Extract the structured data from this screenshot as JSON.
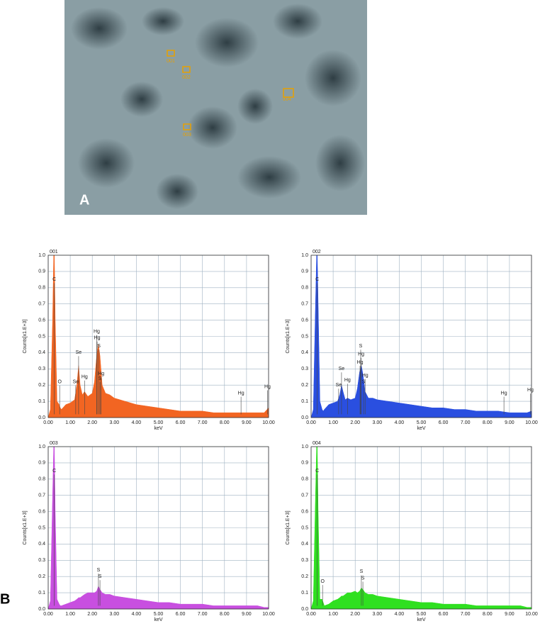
{
  "image": {
    "label": "A",
    "markers": [
      "001",
      "002",
      "003",
      "004"
    ]
  },
  "panel_label": "B",
  "chart_data": [
    {
      "type": "area",
      "title": "001",
      "x_label": "keV",
      "y_label": "Counts[x1.E+3]",
      "color": "#f26522",
      "grid": true,
      "xlim": [
        0,
        10
      ],
      "ylim": [
        0,
        1
      ],
      "xticks": [
        {
          "value": 0,
          "label": "0.00"
        },
        {
          "value": 1,
          "label": "1.00"
        },
        {
          "value": 2,
          "label": "2.00"
        },
        {
          "value": 3,
          "label": "3.00"
        },
        {
          "value": 4,
          "label": "4.00"
        },
        {
          "value": 5,
          "label": "5.00"
        },
        {
          "value": 6,
          "label": "6.00"
        },
        {
          "value": 7,
          "label": "7.00"
        },
        {
          "value": 8,
          "label": "8.00"
        },
        {
          "value": 9,
          "label": "9.00"
        },
        {
          "value": 10,
          "label": "10.00"
        }
      ],
      "yticks": [
        {
          "value": 0,
          "label": "0.0"
        },
        0.1,
        0.2,
        0.3,
        0.4,
        0.5,
        0.6,
        0.7,
        0.8,
        0.9,
        {
          "value": 1,
          "label": "1.0"
        }
      ],
      "x": [
        0,
        0.1,
        0.2,
        0.25,
        0.28,
        0.32,
        0.4,
        0.5,
        0.55,
        0.6,
        0.8,
        1.0,
        1.2,
        1.3,
        1.38,
        1.45,
        1.55,
        1.65,
        1.8,
        2.0,
        2.1,
        2.2,
        2.28,
        2.35,
        2.45,
        2.6,
        2.8,
        3.0,
        3.5,
        4.0,
        4.5,
        5.0,
        5.5,
        6.0,
        6.5,
        7.0,
        7.5,
        8.0,
        8.5,
        9.0,
        9.5,
        9.8,
        10.0
      ],
      "values": [
        0,
        0.05,
        0.6,
        1.0,
        1.0,
        0.6,
        0.1,
        0.08,
        0.06,
        0.05,
        0.08,
        0.09,
        0.11,
        0.2,
        0.32,
        0.2,
        0.14,
        0.16,
        0.13,
        0.15,
        0.22,
        0.38,
        0.45,
        0.38,
        0.2,
        0.15,
        0.14,
        0.12,
        0.1,
        0.08,
        0.07,
        0.06,
        0.05,
        0.04,
        0.04,
        0.04,
        0.03,
        0.03,
        0.03,
        0.03,
        0.03,
        0.03,
        0.06
      ],
      "annotations": [
        {
          "label": "C",
          "x": 0.28,
          "y": 0.85
        },
        {
          "label": "O",
          "x": 0.52,
          "y": 0.22
        },
        {
          "label": "Se",
          "x": 1.38,
          "y": 0.4
        },
        {
          "label": "Se",
          "x": 1.25,
          "y": 0.22
        },
        {
          "label": "Hg",
          "x": 1.65,
          "y": 0.25
        },
        {
          "label": "Hg",
          "x": 2.2,
          "y": 0.53
        },
        {
          "label": "Hg",
          "x": 2.22,
          "y": 0.49
        },
        {
          "label": "S",
          "x": 2.3,
          "y": 0.44
        },
        {
          "label": "Hg",
          "x": 2.4,
          "y": 0.27
        },
        {
          "label": "S",
          "x": 2.35,
          "y": 0.24
        },
        {
          "label": "Hg",
          "x": 8.75,
          "y": 0.15
        },
        {
          "label": "Hg",
          "x": 9.95,
          "y": 0.19
        }
      ]
    },
    {
      "type": "area",
      "title": "002",
      "x_label": "keV",
      "y_label": "Counts[x1.E+3]",
      "color": "#2a4fe0",
      "grid": true,
      "xlim": [
        0,
        10
      ],
      "ylim": [
        0,
        1
      ],
      "xticks": [
        {
          "value": 0,
          "label": "0.00"
        },
        {
          "value": 1,
          "label": "1.00"
        },
        {
          "value": 2,
          "label": "2.00"
        },
        {
          "value": 3,
          "label": "3.00"
        },
        {
          "value": 4,
          "label": "4.00"
        },
        {
          "value": 5,
          "label": "5.00"
        },
        {
          "value": 6,
          "label": "6.00"
        },
        {
          "value": 7,
          "label": "7.00"
        },
        {
          "value": 8,
          "label": "8.00"
        },
        {
          "value": 9,
          "label": "9.00"
        },
        {
          "value": 10,
          "label": "10.00"
        }
      ],
      "yticks": [
        {
          "value": 0,
          "label": "0.0"
        },
        0.1,
        0.2,
        0.3,
        0.4,
        0.5,
        0.6,
        0.7,
        0.8,
        0.9,
        {
          "value": 1,
          "label": "1.0"
        }
      ],
      "x": [
        0,
        0.1,
        0.2,
        0.25,
        0.28,
        0.32,
        0.4,
        0.5,
        0.55,
        0.6,
        0.8,
        1.0,
        1.2,
        1.3,
        1.38,
        1.45,
        1.55,
        1.65,
        1.8,
        2.0,
        2.1,
        2.2,
        2.28,
        2.35,
        2.45,
        2.6,
        2.8,
        3.0,
        3.5,
        4.0,
        4.5,
        5.0,
        5.5,
        6.0,
        6.5,
        7.0,
        7.5,
        8.0,
        8.5,
        9.0,
        9.5,
        9.8,
        10.0
      ],
      "values": [
        0,
        0.05,
        0.7,
        1.0,
        1.0,
        0.7,
        0.1,
        0.05,
        0.04,
        0.05,
        0.08,
        0.09,
        0.1,
        0.14,
        0.2,
        0.16,
        0.11,
        0.12,
        0.11,
        0.12,
        0.18,
        0.28,
        0.32,
        0.27,
        0.16,
        0.12,
        0.12,
        0.11,
        0.1,
        0.09,
        0.08,
        0.07,
        0.06,
        0.06,
        0.05,
        0.05,
        0.04,
        0.04,
        0.04,
        0.03,
        0.03,
        0.03,
        0.04
      ],
      "annotations": [
        {
          "label": "C",
          "x": 0.28,
          "y": 0.85
        },
        {
          "label": "Se",
          "x": 1.38,
          "y": 0.3
        },
        {
          "label": "Se",
          "x": 1.25,
          "y": 0.2
        },
        {
          "label": "Hg",
          "x": 1.65,
          "y": 0.23
        },
        {
          "label": "S",
          "x": 2.25,
          "y": 0.44
        },
        {
          "label": "Hg",
          "x": 2.27,
          "y": 0.39
        },
        {
          "label": "Hg",
          "x": 2.22,
          "y": 0.34
        },
        {
          "label": "Hg",
          "x": 2.45,
          "y": 0.26
        },
        {
          "label": "S",
          "x": 2.38,
          "y": 0.22
        },
        {
          "label": "Hg",
          "x": 8.75,
          "y": 0.15
        },
        {
          "label": "Hg",
          "x": 9.95,
          "y": 0.17
        }
      ]
    },
    {
      "type": "area",
      "title": "003",
      "x_label": "keV",
      "y_label": "Counts[x1.E+3]",
      "color": "#c84fe0",
      "grid": true,
      "xlim": [
        0,
        10
      ],
      "ylim": [
        0,
        1
      ],
      "xticks": [
        {
          "value": 0,
          "label": "0.00"
        },
        {
          "value": 1,
          "label": "1.00"
        },
        {
          "value": 2,
          "label": "2.00"
        },
        {
          "value": 3,
          "label": "3.00"
        },
        {
          "value": 4,
          "label": "4.00"
        },
        {
          "value": 5,
          "label": "5.00"
        },
        {
          "value": 6,
          "label": "6.00"
        },
        {
          "value": 7,
          "label": "7.00"
        },
        {
          "value": 8,
          "label": "8.00"
        },
        {
          "value": 9,
          "label": "9.00"
        },
        {
          "value": 10,
          "label": "10.00"
        }
      ],
      "yticks": [
        {
          "value": 0,
          "label": "0.0"
        },
        0.1,
        0.2,
        0.3,
        0.4,
        0.5,
        0.6,
        0.7,
        0.8,
        0.9,
        {
          "value": 1,
          "label": "1.0"
        }
      ],
      "x": [
        0,
        0.1,
        0.2,
        0.25,
        0.28,
        0.32,
        0.4,
        0.5,
        0.55,
        0.6,
        0.8,
        1.0,
        1.2,
        1.3,
        1.38,
        1.45,
        1.55,
        1.65,
        1.8,
        2.0,
        2.1,
        2.2,
        2.28,
        2.35,
        2.45,
        2.6,
        2.8,
        3.0,
        3.5,
        4.0,
        4.5,
        5.0,
        5.5,
        6.0,
        6.5,
        7.0,
        7.5,
        8.0,
        8.5,
        9.0,
        9.5,
        9.8,
        10.0
      ],
      "values": [
        0,
        0.05,
        0.7,
        1.0,
        1.0,
        0.6,
        0.06,
        0.03,
        0.02,
        0.02,
        0.03,
        0.04,
        0.05,
        0.06,
        0.07,
        0.07,
        0.08,
        0.09,
        0.1,
        0.1,
        0.1,
        0.11,
        0.14,
        0.12,
        0.1,
        0.09,
        0.09,
        0.08,
        0.07,
        0.06,
        0.05,
        0.04,
        0.04,
        0.03,
        0.03,
        0.03,
        0.02,
        0.02,
        0.02,
        0.02,
        0.02,
        0.01,
        0.01
      ],
      "annotations": [
        {
          "label": "C",
          "x": 0.28,
          "y": 0.85
        },
        {
          "label": "S",
          "x": 2.28,
          "y": 0.24
        },
        {
          "label": "S",
          "x": 2.35,
          "y": 0.2
        }
      ]
    },
    {
      "type": "area",
      "title": "004",
      "x_label": "keV",
      "y_label": "Counts[x1.E+3]",
      "color": "#2fe020",
      "grid": true,
      "xlim": [
        0,
        10
      ],
      "ylim": [
        0,
        1
      ],
      "xticks": [
        {
          "value": 0,
          "label": "0.00"
        },
        {
          "value": 1,
          "label": "1.00"
        },
        {
          "value": 2,
          "label": "2.00"
        },
        {
          "value": 3,
          "label": "3.00"
        },
        {
          "value": 4,
          "label": "4.00"
        },
        {
          "value": 5,
          "label": "5.00"
        },
        {
          "value": 6,
          "label": "6.00"
        },
        {
          "value": 7,
          "label": "7.00"
        },
        {
          "value": 8,
          "label": "8.00"
        },
        {
          "value": 9,
          "label": "9.00"
        },
        {
          "value": 10,
          "label": "10.00"
        }
      ],
      "yticks": [
        {
          "value": 0,
          "label": "0.0"
        },
        0.1,
        0.2,
        0.3,
        0.4,
        0.5,
        0.6,
        0.7,
        0.8,
        0.9,
        {
          "value": 1,
          "label": "1.0"
        }
      ],
      "x": [
        0,
        0.1,
        0.2,
        0.25,
        0.28,
        0.32,
        0.4,
        0.5,
        0.55,
        0.6,
        0.8,
        1.0,
        1.2,
        1.3,
        1.38,
        1.45,
        1.55,
        1.65,
        1.8,
        2.0,
        2.1,
        2.2,
        2.28,
        2.35,
        2.45,
        2.6,
        2.8,
        3.0,
        3.5,
        4.0,
        4.5,
        5.0,
        5.5,
        6.0,
        6.5,
        7.0,
        7.5,
        8.0,
        8.5,
        9.0,
        9.5,
        9.8,
        10.0
      ],
      "values": [
        0,
        0.05,
        0.7,
        1.0,
        1.0,
        0.6,
        0.06,
        0.06,
        0.04,
        0.02,
        0.03,
        0.05,
        0.06,
        0.07,
        0.08,
        0.08,
        0.09,
        0.1,
        0.1,
        0.11,
        0.1,
        0.11,
        0.13,
        0.12,
        0.1,
        0.09,
        0.09,
        0.08,
        0.07,
        0.06,
        0.05,
        0.04,
        0.04,
        0.03,
        0.03,
        0.03,
        0.02,
        0.02,
        0.02,
        0.02,
        0.02,
        0.01,
        0.01
      ],
      "annotations": [
        {
          "label": "C",
          "x": 0.28,
          "y": 0.85
        },
        {
          "label": "O",
          "x": 0.52,
          "y": 0.17
        },
        {
          "label": "S",
          "x": 2.28,
          "y": 0.23
        },
        {
          "label": "S",
          "x": 2.35,
          "y": 0.19
        }
      ]
    }
  ]
}
